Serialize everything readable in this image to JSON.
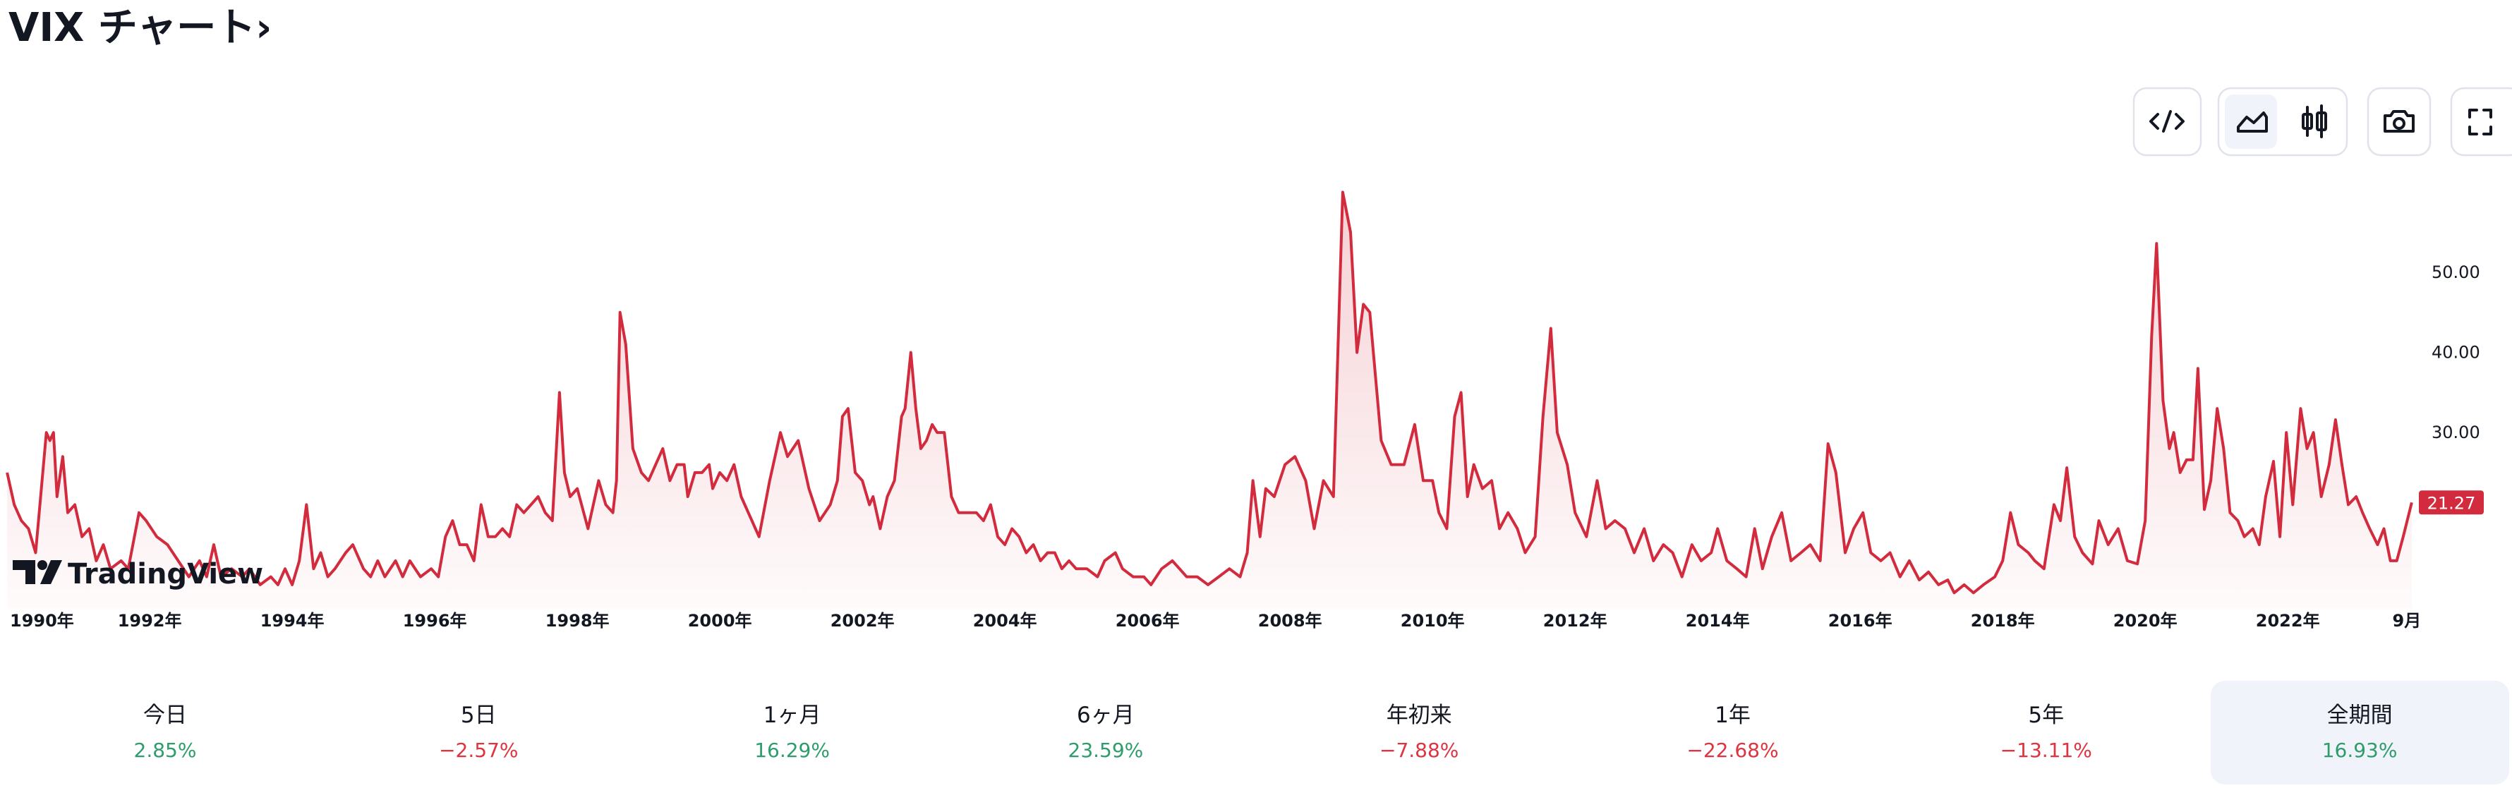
{
  "header": {
    "title": "VIX チャート›"
  },
  "chart_data": {
    "type": "line",
    "watermark": "TradingView",
    "color": "#d32b3e",
    "grid": false,
    "xlim": [
      1989.9,
      2023.8
    ],
    "ylim": [
      8,
      64
    ],
    "xticks": [
      {
        "value": 1990,
        "label": "1990年"
      },
      {
        "value": 1992,
        "label": "1992年"
      },
      {
        "value": 1994,
        "label": "1994年"
      },
      {
        "value": 1996,
        "label": "1996年"
      },
      {
        "value": 1998,
        "label": "1998年"
      },
      {
        "value": 2000,
        "label": "2000年"
      },
      {
        "value": 2002,
        "label": "2002年"
      },
      {
        "value": 2004,
        "label": "2004年"
      },
      {
        "value": 2006,
        "label": "2006年"
      },
      {
        "value": 2008,
        "label": "2008年"
      },
      {
        "value": 2010,
        "label": "2010年"
      },
      {
        "value": 2012,
        "label": "2012年"
      },
      {
        "value": 2014,
        "label": "2014年"
      },
      {
        "value": 2016,
        "label": "2016年"
      },
      {
        "value": 2018,
        "label": "2018年"
      },
      {
        "value": 2020,
        "label": "2020年"
      },
      {
        "value": 2022,
        "label": "2022年"
      },
      {
        "value": 2023.67,
        "label": "9月"
      }
    ],
    "yticks": [
      {
        "value": 30,
        "label": "30.00"
      },
      {
        "value": 40,
        "label": "40.00"
      },
      {
        "value": 50,
        "label": "50.00"
      }
    ],
    "x": [
      1990.0,
      1990.1,
      1990.2,
      1990.3,
      1990.4,
      1990.55,
      1990.6,
      1990.65,
      1990.7,
      1990.78,
      1990.85,
      1990.95,
      1991.05,
      1991.15,
      1991.25,
      1991.35,
      1991.45,
      1991.6,
      1991.7,
      1991.85,
      1991.95,
      1992.1,
      1992.25,
      1992.4,
      1992.55,
      1992.7,
      1992.8,
      1992.9,
      1993.0,
      1993.15,
      1993.3,
      1993.4,
      1993.55,
      1993.7,
      1993.8,
      1993.9,
      1994.0,
      1994.1,
      1994.2,
      1994.3,
      1994.4,
      1994.5,
      1994.6,
      1994.75,
      1994.85,
      1995.0,
      1995.1,
      1995.2,
      1995.3,
      1995.45,
      1995.55,
      1995.65,
      1995.8,
      1995.95,
      1996.05,
      1996.15,
      1996.25,
      1996.35,
      1996.45,
      1996.55,
      1996.65,
      1996.75,
      1996.85,
      1996.95,
      1997.05,
      1997.15,
      1997.25,
      1997.35,
      1997.45,
      1997.55,
      1997.65,
      1997.75,
      1997.82,
      1997.9,
      1998.0,
      1998.15,
      1998.3,
      1998.4,
      1998.5,
      1998.55,
      1998.6,
      1998.68,
      1998.78,
      1998.9,
      1999.0,
      1999.1,
      1999.2,
      1999.3,
      1999.4,
      1999.5,
      1999.55,
      1999.65,
      1999.75,
      1999.85,
      1999.9,
      2000.0,
      2000.1,
      2000.2,
      2000.3,
      2000.45,
      2000.55,
      2000.7,
      2000.85,
      2000.95,
      2001.1,
      2001.25,
      2001.4,
      2001.55,
      2001.65,
      2001.72,
      2001.8,
      2001.9,
      2002.0,
      2002.1,
      2002.15,
      2002.25,
      2002.35,
      2002.45,
      2002.55,
      2002.6,
      2002.68,
      2002.75,
      2002.82,
      2002.9,
      2002.98,
      2003.05,
      2003.15,
      2003.25,
      2003.35,
      2003.5,
      2003.6,
      2003.7,
      2003.8,
      2003.9,
      2004.0,
      2004.1,
      2004.2,
      2004.3,
      2004.4,
      2004.5,
      2004.6,
      2004.7,
      2004.8,
      2004.9,
      2005.0,
      2005.15,
      2005.3,
      2005.4,
      2005.55,
      2005.65,
      2005.8,
      2005.95,
      2006.05,
      2006.2,
      2006.35,
      2006.45,
      2006.55,
      2006.7,
      2006.85,
      2007.0,
      2007.15,
      2007.3,
      2007.4,
      2007.48,
      2007.58,
      2007.66,
      2007.78,
      2007.93,
      2008.07,
      2008.22,
      2008.34,
      2008.47,
      2008.61,
      2008.74,
      2008.85,
      2008.94,
      2009.03,
      2009.12,
      2009.28,
      2009.42,
      2009.6,
      2009.75,
      2009.87,
      2010.0,
      2010.09,
      2010.2,
      2010.31,
      2010.4,
      2010.49,
      2010.58,
      2010.7,
      2010.83,
      2010.94,
      2011.06,
      2011.19,
      2011.3,
      2011.44,
      2011.55,
      2011.66,
      2011.75,
      2011.89,
      2012.0,
      2012.16,
      2012.31,
      2012.43,
      2012.56,
      2012.7,
      2012.83,
      2012.97,
      2013.1,
      2013.24,
      2013.37,
      2013.5,
      2013.64,
      2013.77,
      2013.91,
      2014.0,
      2014.13,
      2014.27,
      2014.4,
      2014.52,
      2014.63,
      2014.76,
      2014.9,
      2015.03,
      2015.17,
      2015.3,
      2015.44,
      2015.55,
      2015.66,
      2015.79,
      2015.91,
      2016.04,
      2016.15,
      2016.29,
      2016.42,
      2016.56,
      2016.69,
      2016.83,
      2016.96,
      2017.1,
      2017.23,
      2017.32,
      2017.46,
      2017.59,
      2017.73,
      2017.89,
      2018.0,
      2018.11,
      2018.22,
      2018.36,
      2018.45,
      2018.58,
      2018.72,
      2018.81,
      2018.9,
      2019.01,
      2019.12,
      2019.26,
      2019.35,
      2019.48,
      2019.62,
      2019.75,
      2019.89,
      2020.0,
      2020.09,
      2020.16,
      2020.25,
      2020.34,
      2020.4,
      2020.49,
      2020.58,
      2020.67,
      2020.74,
      2020.83,
      2020.92,
      2021.01,
      2021.1,
      2021.19,
      2021.3,
      2021.39,
      2021.51,
      2021.6,
      2021.69,
      2021.8,
      2021.89,
      2021.98,
      2022.07,
      2022.18,
      2022.27,
      2022.36,
      2022.47,
      2022.58,
      2022.67,
      2022.76,
      2022.85,
      2022.96,
      2023.05,
      2023.15,
      2023.26,
      2023.35,
      2023.44,
      2023.53,
      2023.62,
      2023.74
    ],
    "values": [
      25,
      21,
      19,
      18,
      15,
      30,
      29,
      30,
      22,
      27,
      20,
      21,
      17,
      18,
      14,
      16,
      13,
      14,
      13,
      20,
      19,
      17,
      16,
      14,
      12,
      14,
      12,
      16,
      12,
      13,
      12,
      13,
      11,
      12,
      11,
      13,
      11,
      14,
      21,
      13,
      15,
      12,
      13,
      15,
      16,
      13,
      12,
      14,
      12,
      14,
      12,
      14,
      12,
      13,
      12,
      17,
      19,
      16,
      16,
      14,
      21,
      17,
      17,
      18,
      17,
      21,
      20,
      21,
      22,
      20,
      19,
      35,
      25,
      22,
      23,
      18,
      24,
      21,
      20,
      24,
      45,
      41,
      28,
      25,
      24,
      26,
      28,
      24,
      26,
      26,
      22,
      25,
      25,
      26,
      23,
      25,
      24,
      26,
      22,
      19,
      17,
      24,
      30,
      27,
      29,
      23,
      19,
      21,
      24,
      32,
      33,
      25,
      24,
      21,
      22,
      18,
      22,
      24,
      32,
      33,
      40,
      33,
      28,
      29,
      31,
      30,
      30,
      22,
      20,
      20,
      20,
      19,
      21,
      17,
      16,
      18,
      17,
      15,
      16,
      14,
      15,
      15,
      13,
      14,
      13,
      13,
      12,
      14,
      15,
      13,
      12,
      12,
      11,
      13,
      14,
      13,
      12,
      12,
      11,
      12,
      13,
      12,
      15,
      24,
      17,
      23,
      22,
      26,
      27,
      24,
      18,
      24,
      22,
      60,
      55,
      40,
      46,
      45,
      29,
      26,
      26,
      31,
      24,
      24,
      20,
      18,
      32,
      35,
      22,
      26,
      23,
      24,
      18,
      20,
      18,
      15,
      17,
      32,
      43,
      30,
      26,
      20,
      17,
      24,
      18,
      19,
      18,
      15,
      18,
      14,
      16,
      15,
      12,
      16,
      14,
      15,
      18,
      14,
      13,
      12,
      18,
      13,
      17,
      20,
      14,
      15,
      16,
      14,
      28.6,
      25,
      15,
      18,
      20,
      15,
      14,
      15,
      12,
      14,
      11.6,
      12.6,
      11,
      11.6,
      10,
      11,
      10,
      11,
      12,
      14,
      20,
      16,
      15,
      14,
      13,
      21,
      19,
      25.6,
      17,
      15,
      13.6,
      19,
      16,
      18,
      14,
      13.6,
      19,
      42,
      53.6,
      34,
      28,
      30,
      25,
      26.6,
      26.6,
      38,
      20.4,
      24,
      33,
      28,
      20,
      19,
      17,
      18,
      16,
      22,
      26.4,
      17,
      30,
      21,
      33,
      28,
      30,
      22,
      26,
      31.6,
      26,
      21,
      22,
      20,
      18,
      16,
      18,
      14,
      14,
      17,
      21.27
    ]
  },
  "periods": [
    {
      "label": "今日",
      "value": "2.85%",
      "color": "#2e9d6b"
    },
    {
      "label": "5日",
      "value": "−2.57%",
      "color": "#e03340"
    },
    {
      "label": "1ヶ月",
      "value": "16.29%",
      "color": "#2e9d6b"
    },
    {
      "label": "6ヶ月",
      "value": "23.59%",
      "color": "#2e9d6b"
    },
    {
      "label": "年初来",
      "value": "−7.88%",
      "color": "#e03340"
    },
    {
      "label": "1年",
      "value": "−22.68%",
      "color": "#e03340"
    },
    {
      "label": "5年",
      "value": "−13.11%",
      "color": "#e03340"
    },
    {
      "label": "全期間",
      "value": "16.93%",
      "color": "#2e9d6b",
      "selected": true
    }
  ]
}
